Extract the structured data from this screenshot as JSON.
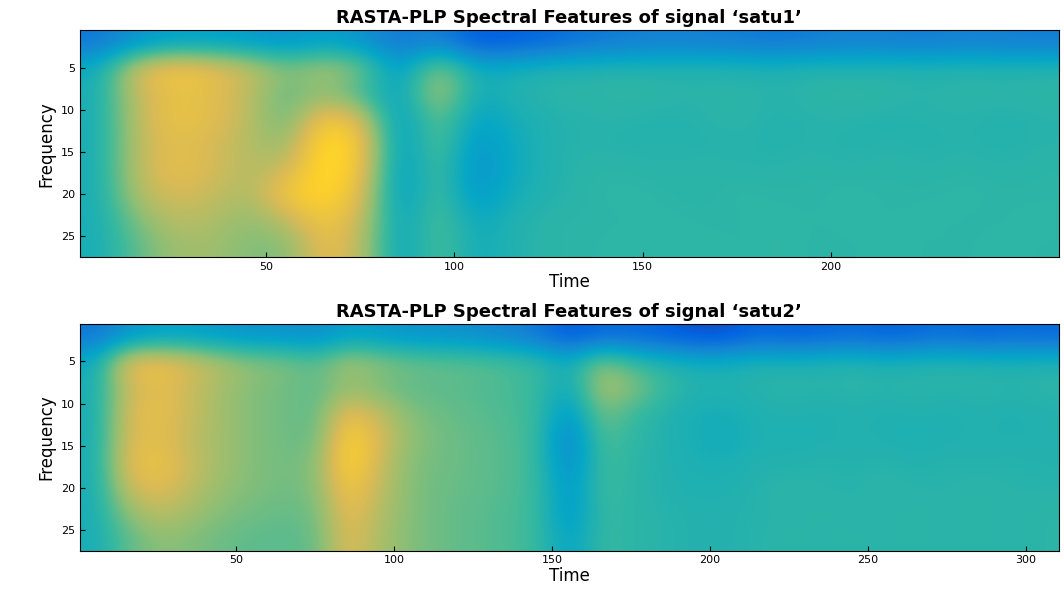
{
  "chart_data": [
    {
      "type": "heatmap",
      "title": "RASTA-PLP Spectral Features of signal ‘satu1’",
      "x_label": "Time",
      "y_label": "Frequency",
      "xlim": [
        0.5,
        260.5
      ],
      "xticks": [
        50,
        100,
        150,
        200
      ],
      "ylim": [
        27.5,
        0.5
      ],
      "yticks": [
        5,
        10,
        15,
        20,
        25
      ],
      "color_range": [
        0,
        1
      ],
      "x": [
        5.5,
        15.5,
        25.5,
        35.5,
        45.5,
        55.5,
        65.5,
        75.5,
        85.5,
        95.5,
        105.5,
        115.5,
        125.5,
        135.5,
        145.5,
        155.5,
        165.5,
        175.5,
        185.5,
        195.5,
        205.5,
        215.5,
        225.5,
        235.5,
        245.5,
        255.5
      ],
      "y": [
        2,
        5,
        8,
        11,
        14,
        17,
        20,
        23,
        26
      ],
      "cells": [
        [
          0.2,
          0.4,
          0.42,
          0.42,
          0.42,
          0.42,
          0.42,
          0.42,
          0.42
        ],
        [
          0.3,
          0.75,
          0.72,
          0.7,
          0.7,
          0.7,
          0.68,
          0.6,
          0.55
        ],
        [
          0.35,
          0.85,
          0.8,
          0.82,
          0.78,
          0.8,
          0.75,
          0.7,
          0.65
        ],
        [
          0.35,
          0.8,
          0.78,
          0.78,
          0.75,
          0.75,
          0.72,
          0.68,
          0.65
        ],
        [
          0.33,
          0.72,
          0.7,
          0.7,
          0.68,
          0.68,
          0.66,
          0.62,
          0.6
        ],
        [
          0.3,
          0.6,
          0.55,
          0.55,
          0.62,
          0.72,
          0.85,
          0.7,
          0.6
        ],
        [
          0.35,
          0.68,
          0.62,
          0.85,
          0.95,
          0.95,
          0.92,
          0.85,
          0.8
        ],
        [
          0.3,
          0.6,
          0.5,
          0.75,
          0.85,
          0.82,
          0.78,
          0.72,
          0.7
        ],
        [
          0.2,
          0.3,
          0.35,
          0.3,
          0.3,
          0.3,
          0.3,
          0.35,
          0.35
        ],
        [
          0.25,
          0.65,
          0.7,
          0.6,
          0.58,
          0.55,
          0.55,
          0.55,
          0.55
        ],
        [
          0.1,
          0.4,
          0.4,
          0.35,
          0.3,
          0.28,
          0.3,
          0.38,
          0.4
        ],
        [
          0.12,
          0.42,
          0.45,
          0.42,
          0.4,
          0.4,
          0.42,
          0.45,
          0.45
        ],
        [
          0.15,
          0.45,
          0.47,
          0.45,
          0.45,
          0.45,
          0.45,
          0.47,
          0.47
        ],
        [
          0.2,
          0.45,
          0.47,
          0.46,
          0.46,
          0.47,
          0.47,
          0.47,
          0.47
        ],
        [
          0.22,
          0.46,
          0.48,
          0.46,
          0.45,
          0.47,
          0.48,
          0.47,
          0.48
        ],
        [
          0.24,
          0.45,
          0.47,
          0.45,
          0.46,
          0.46,
          0.47,
          0.48,
          0.47
        ],
        [
          0.23,
          0.46,
          0.46,
          0.46,
          0.45,
          0.47,
          0.46,
          0.47,
          0.48
        ],
        [
          0.22,
          0.45,
          0.47,
          0.47,
          0.46,
          0.46,
          0.48,
          0.47,
          0.47
        ],
        [
          0.2,
          0.44,
          0.46,
          0.45,
          0.45,
          0.46,
          0.47,
          0.48,
          0.48
        ],
        [
          0.22,
          0.46,
          0.47,
          0.46,
          0.46,
          0.47,
          0.47,
          0.47,
          0.47
        ],
        [
          0.24,
          0.45,
          0.48,
          0.46,
          0.45,
          0.46,
          0.48,
          0.48,
          0.47
        ],
        [
          0.23,
          0.46,
          0.47,
          0.45,
          0.46,
          0.47,
          0.47,
          0.47,
          0.48
        ],
        [
          0.22,
          0.45,
          0.46,
          0.46,
          0.45,
          0.46,
          0.47,
          0.48,
          0.47
        ],
        [
          0.24,
          0.46,
          0.47,
          0.46,
          0.46,
          0.47,
          0.48,
          0.47,
          0.47
        ],
        [
          0.23,
          0.45,
          0.47,
          0.45,
          0.45,
          0.46,
          0.47,
          0.47,
          0.48
        ],
        [
          0.22,
          0.46,
          0.47,
          0.46,
          0.46,
          0.47,
          0.47,
          0.48,
          0.47
        ]
      ]
    },
    {
      "type": "heatmap",
      "title": "RASTA-PLP Spectral Features of signal ‘satu2’",
      "x_label": "Time",
      "y_label": "Frequency",
      "xlim": [
        0.5,
        310.5
      ],
      "xticks": [
        50,
        100,
        150,
        200,
        250,
        300
      ],
      "ylim": [
        27.5,
        0.5
      ],
      "yticks": [
        5,
        10,
        15,
        20,
        25
      ],
      "color_range": [
        0,
        1
      ],
      "x": [
        5.5,
        15.5,
        25.5,
        35.5,
        45.5,
        55.5,
        65.5,
        75.5,
        85.5,
        95.5,
        105.5,
        115.5,
        125.5,
        135.5,
        145.5,
        155.5,
        165.5,
        175.5,
        185.5,
        195.5,
        205.5,
        215.5,
        225.5,
        235.5,
        245.5,
        255.5,
        265.5,
        275.5,
        285.5,
        295.5,
        305.5
      ],
      "y": [
        2,
        5,
        8,
        11,
        14,
        17,
        20,
        23,
        26
      ],
      "cells": [
        [
          0.2,
          0.4,
          0.42,
          0.42,
          0.42,
          0.42,
          0.42,
          0.42,
          0.42
        ],
        [
          0.3,
          0.8,
          0.72,
          0.75,
          0.75,
          0.78,
          0.72,
          0.62,
          0.55
        ],
        [
          0.35,
          0.82,
          0.78,
          0.8,
          0.78,
          0.82,
          0.78,
          0.7,
          0.62
        ],
        [
          0.35,
          0.75,
          0.72,
          0.72,
          0.7,
          0.72,
          0.7,
          0.65,
          0.6
        ],
        [
          0.32,
          0.68,
          0.65,
          0.65,
          0.65,
          0.65,
          0.63,
          0.6,
          0.57
        ],
        [
          0.3,
          0.62,
          0.6,
          0.6,
          0.6,
          0.6,
          0.6,
          0.58,
          0.55
        ],
        [
          0.3,
          0.6,
          0.58,
          0.58,
          0.58,
          0.58,
          0.58,
          0.56,
          0.55
        ],
        [
          0.28,
          0.55,
          0.55,
          0.55,
          0.56,
          0.6,
          0.6,
          0.58,
          0.56
        ],
        [
          0.35,
          0.68,
          0.62,
          0.8,
          0.9,
          0.92,
          0.85,
          0.8,
          0.78
        ],
        [
          0.33,
          0.62,
          0.58,
          0.7,
          0.75,
          0.72,
          0.7,
          0.68,
          0.66
        ],
        [
          0.3,
          0.58,
          0.55,
          0.6,
          0.62,
          0.6,
          0.6,
          0.6,
          0.6
        ],
        [
          0.3,
          0.56,
          0.55,
          0.57,
          0.58,
          0.58,
          0.57,
          0.57,
          0.57
        ],
        [
          0.28,
          0.55,
          0.54,
          0.55,
          0.56,
          0.56,
          0.56,
          0.55,
          0.55
        ],
        [
          0.25,
          0.53,
          0.52,
          0.53,
          0.54,
          0.54,
          0.54,
          0.53,
          0.53
        ],
        [
          0.2,
          0.5,
          0.5,
          0.5,
          0.5,
          0.5,
          0.5,
          0.5,
          0.5
        ],
        [
          0.1,
          0.4,
          0.38,
          0.3,
          0.22,
          0.25,
          0.3,
          0.3,
          0.35
        ],
        [
          0.15,
          0.62,
          0.68,
          0.6,
          0.55,
          0.52,
          0.52,
          0.5,
          0.5
        ],
        [
          0.15,
          0.5,
          0.62,
          0.5,
          0.48,
          0.47,
          0.47,
          0.47,
          0.47
        ],
        [
          0.12,
          0.45,
          0.5,
          0.45,
          0.45,
          0.45,
          0.45,
          0.46,
          0.46
        ],
        [
          0.08,
          0.42,
          0.45,
          0.42,
          0.42,
          0.43,
          0.44,
          0.45,
          0.45
        ],
        [
          0.08,
          0.42,
          0.45,
          0.42,
          0.4,
          0.43,
          0.44,
          0.45,
          0.45
        ],
        [
          0.15,
          0.45,
          0.46,
          0.44,
          0.44,
          0.45,
          0.46,
          0.46,
          0.46
        ],
        [
          0.12,
          0.44,
          0.47,
          0.45,
          0.43,
          0.45,
          0.47,
          0.46,
          0.47
        ],
        [
          0.14,
          0.45,
          0.46,
          0.44,
          0.44,
          0.46,
          0.46,
          0.47,
          0.46
        ],
        [
          0.16,
          0.46,
          0.47,
          0.45,
          0.45,
          0.45,
          0.46,
          0.46,
          0.47
        ],
        [
          0.13,
          0.44,
          0.46,
          0.44,
          0.44,
          0.46,
          0.47,
          0.46,
          0.46
        ],
        [
          0.15,
          0.45,
          0.47,
          0.45,
          0.43,
          0.45,
          0.46,
          0.47,
          0.47
        ],
        [
          0.17,
          0.46,
          0.46,
          0.44,
          0.44,
          0.46,
          0.46,
          0.46,
          0.46
        ],
        [
          0.14,
          0.45,
          0.47,
          0.45,
          0.45,
          0.45,
          0.47,
          0.47,
          0.47
        ],
        [
          0.16,
          0.44,
          0.46,
          0.44,
          0.44,
          0.46,
          0.46,
          0.46,
          0.46
        ],
        [
          0.15,
          0.45,
          0.47,
          0.45,
          0.45,
          0.45,
          0.46,
          0.47,
          0.47
        ]
      ]
    }
  ]
}
